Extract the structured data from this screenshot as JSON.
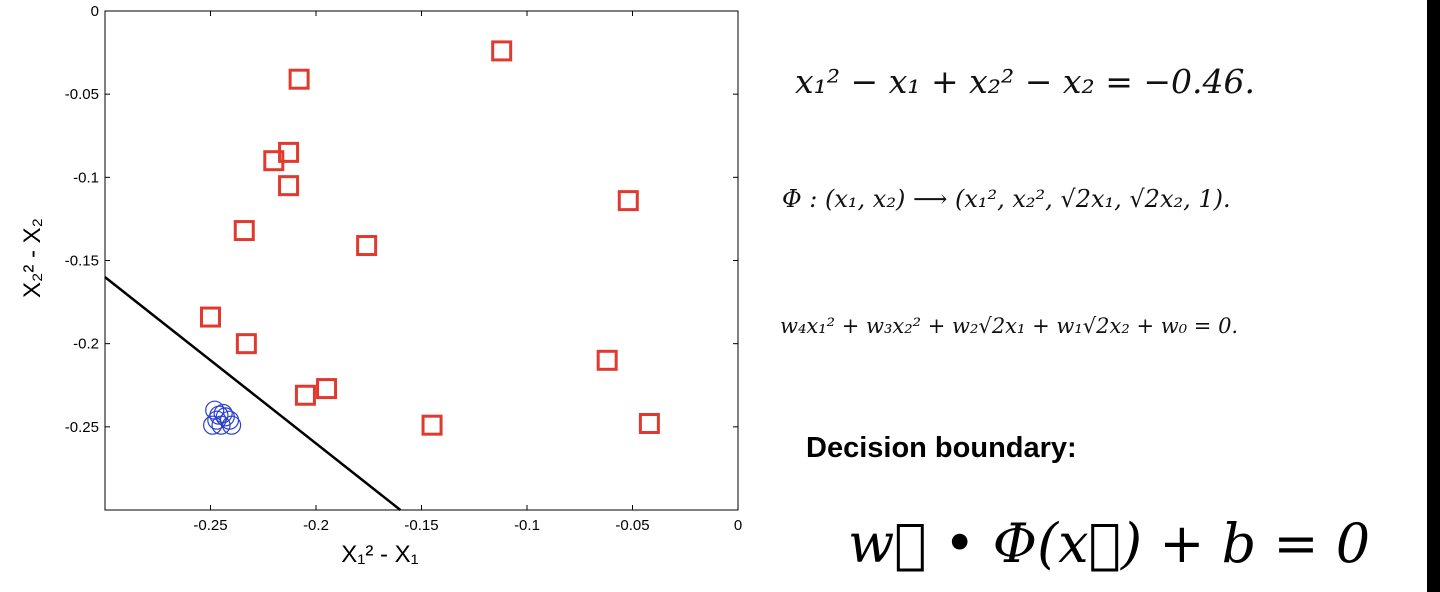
{
  "chart_data": {
    "type": "scatter",
    "xlim": [
      -0.3,
      0
    ],
    "ylim": [
      -0.3,
      0
    ],
    "xticks": [
      "-0.25",
      "-0.2",
      "-0.15",
      "-0.1",
      "-0.05",
      "0"
    ],
    "xtick_values": [
      -0.25,
      -0.2,
      -0.15,
      -0.1,
      -0.05,
      0
    ],
    "yticks": [
      "0",
      "-0.05",
      "-0.1",
      "-0.15",
      "-0.2",
      "-0.25"
    ],
    "ytick_values": [
      0,
      -0.05,
      -0.1,
      -0.15,
      -0.2,
      -0.25
    ],
    "xlabel": "X₁² - X₁",
    "ylabel": "X₂² - X₂",
    "grid": false,
    "series": [
      {
        "marker": "square",
        "color": "#e03a2f",
        "points": [
          [
            -0.112,
            -0.024
          ],
          [
            -0.208,
            -0.041
          ],
          [
            -0.213,
            -0.085
          ],
          [
            -0.22,
            -0.09
          ],
          [
            -0.213,
            -0.105
          ],
          [
            -0.052,
            -0.114
          ],
          [
            -0.234,
            -0.132
          ],
          [
            -0.176,
            -0.141
          ],
          [
            -0.25,
            -0.184
          ],
          [
            -0.233,
            -0.2
          ],
          [
            -0.195,
            -0.227
          ],
          [
            -0.205,
            -0.231
          ],
          [
            -0.062,
            -0.21
          ],
          [
            -0.145,
            -0.249
          ],
          [
            -0.042,
            -0.248
          ]
        ]
      },
      {
        "marker": "circle",
        "color": "#2a3fd0",
        "points": [
          [
            -0.248,
            -0.24
          ],
          [
            -0.244,
            -0.242
          ],
          [
            -0.247,
            -0.246
          ],
          [
            -0.241,
            -0.246
          ],
          [
            -0.249,
            -0.249
          ],
          [
            -0.245,
            -0.249
          ],
          [
            -0.24,
            -0.249
          ],
          [
            -0.243,
            -0.244
          ],
          [
            -0.246,
            -0.243
          ]
        ]
      }
    ],
    "boundary_line": {
      "color": "#000000",
      "points": [
        [
          -0.3,
          -0.16
        ],
        [
          -0.16,
          -0.3
        ]
      ]
    }
  },
  "equations": {
    "eq1": "x₁² − x₁ + x₂² − x₂ = −0.46.",
    "eq2": "Φ : (x₁, x₂) ⟶ (x₁², x₂², √2x₁, √2x₂, 1).",
    "eq3": "w₄x₁² + w₃x₂² + w₂√2x₁ + w₁√2x₂ + w₀ = 0."
  },
  "decision": {
    "title": "Decision boundary:",
    "equation": "w⃗ • Φ(x⃗) + b = 0"
  }
}
